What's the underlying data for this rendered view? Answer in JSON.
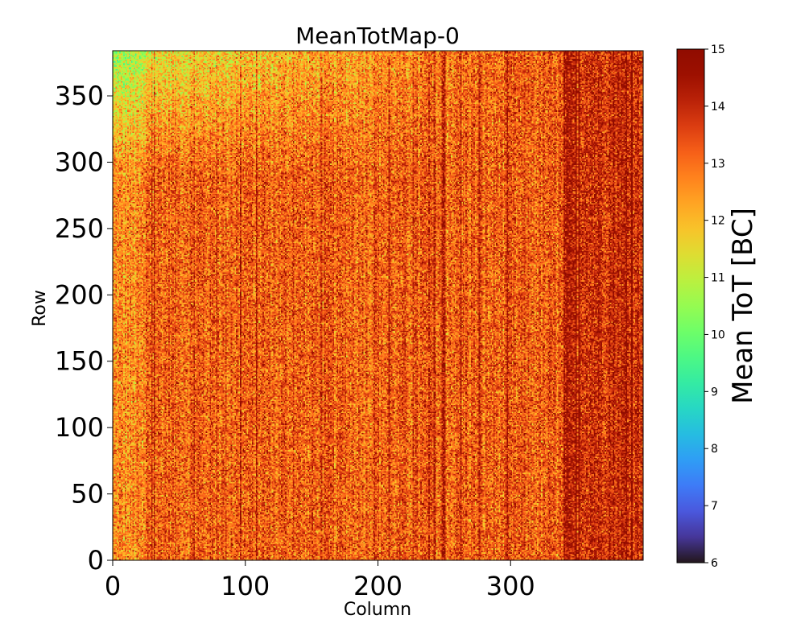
{
  "chart_data": {
    "type": "heatmap",
    "title": "MeanTotMap-0",
    "xlabel": "Column",
    "ylabel": "Row",
    "xlim": [
      0,
      400
    ],
    "ylim": [
      0,
      384
    ],
    "x_ticks": [
      0,
      100,
      200,
      300
    ],
    "y_ticks": [
      0,
      50,
      100,
      150,
      200,
      250,
      300,
      350
    ],
    "colorbar": {
      "label": "Mean ToT [BC]",
      "min": 6,
      "max": 15,
      "ticks": [
        6,
        7,
        8,
        9,
        10,
        11,
        12,
        13,
        14,
        15
      ],
      "colormap": "turbo"
    },
    "grid": false,
    "n_columns": 400,
    "n_rows": 384,
    "value_summary": {
      "typical_value": 13.2,
      "typical_range": [
        11,
        15
      ],
      "low_region": "top-left rows 300-384, columns 0-130, values ~10-12",
      "high_region": "right side columns 340-400, values ~14-15"
    }
  }
}
